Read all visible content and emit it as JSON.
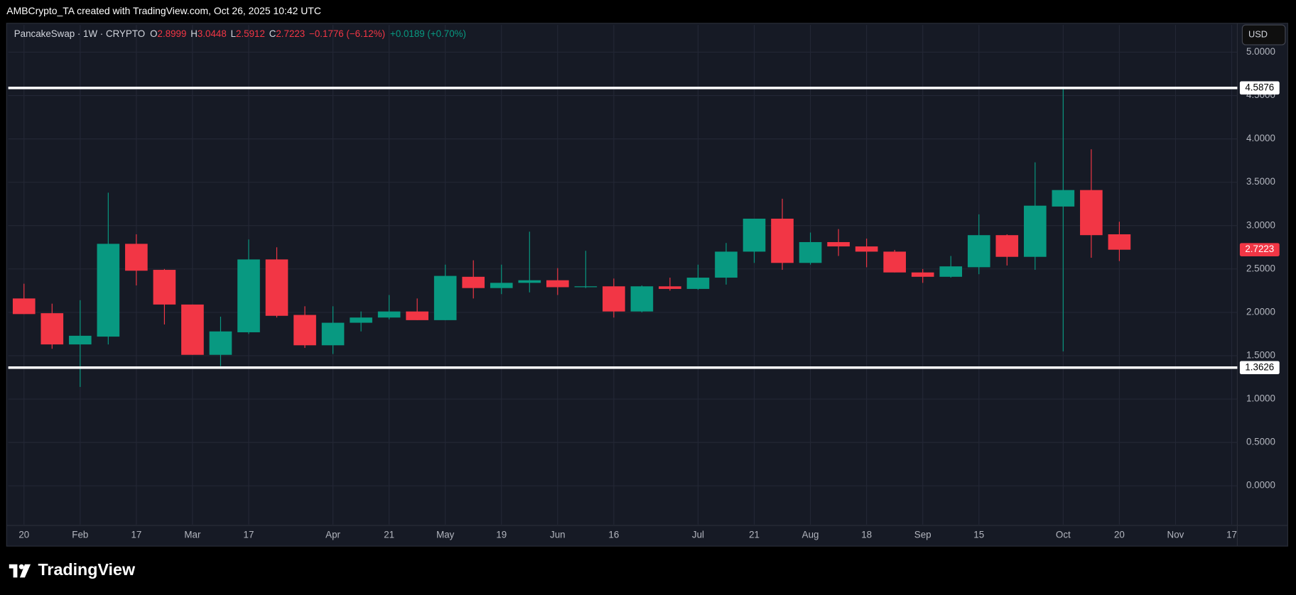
{
  "banner": "AMBCrypto_TA created with TradingView.com, Oct 26, 2025 10:42 UTC",
  "brand": "TradingView",
  "currency": "USD",
  "chart_data": {
    "type": "candlestick",
    "title": "PancakeSwap · 1W · CRYPTO",
    "ohlc_legend": [
      {
        "label": "O",
        "value": "2.8999"
      },
      {
        "label": "H",
        "value": "3.0448"
      },
      {
        "label": "L",
        "value": "2.5912"
      },
      {
        "label": "C",
        "value": "2.7223"
      }
    ],
    "change": "−0.1776 (−6.12%)",
    "extra": "+0.0189 (+0.70%)",
    "up_color": "#089981",
    "down_color": "#f23645",
    "open": [
      2.16,
      1.99,
      1.63,
      1.72,
      2.79,
      2.49,
      2.09,
      1.51,
      1.77,
      2.61,
      1.97,
      1.62,
      1.88,
      1.94,
      2.01,
      1.91,
      2.41,
      2.28,
      2.34,
      2.37,
      2.29,
      2.3,
      2.01,
      2.3,
      2.27,
      2.4,
      2.7,
      3.08,
      2.57,
      2.81,
      2.76,
      2.7,
      2.46,
      2.41,
      2.52,
      2.89,
      2.64,
      3.22,
      3.41,
      2.8999
    ],
    "high": [
      2.33,
      2.1,
      2.14,
      3.38,
      2.9,
      2.5,
      2.09,
      1.95,
      2.84,
      2.75,
      2.07,
      2.07,
      2.01,
      2.2,
      2.16,
      2.55,
      2.6,
      2.55,
      2.93,
      2.51,
      2.71,
      2.39,
      2.31,
      2.4,
      2.55,
      2.8,
      3.08,
      3.31,
      2.92,
      2.96,
      2.85,
      2.72,
      2.5,
      2.65,
      3.13,
      2.9,
      3.73,
      4.5876,
      3.88,
      3.0448
    ],
    "low": [
      1.98,
      1.58,
      1.14,
      1.63,
      2.31,
      1.86,
      1.51,
      1.38,
      1.75,
      1.94,
      1.59,
      1.52,
      1.78,
      1.92,
      1.91,
      1.91,
      2.16,
      2.21,
      2.23,
      2.2,
      2.28,
      1.94,
      2.0,
      2.25,
      2.26,
      2.32,
      2.57,
      2.49,
      2.55,
      2.65,
      2.52,
      2.46,
      2.34,
      2.4,
      2.44,
      2.54,
      2.49,
      1.55,
      2.63,
      2.5912
    ],
    "close": [
      1.98,
      1.63,
      1.73,
      2.79,
      2.48,
      2.09,
      1.51,
      1.78,
      2.61,
      1.96,
      1.62,
      1.88,
      1.94,
      2.01,
      1.91,
      2.42,
      2.28,
      2.34,
      2.37,
      2.29,
      2.3,
      2.01,
      2.3,
      2.27,
      2.4,
      2.7,
      3.08,
      2.57,
      2.81,
      2.76,
      2.7,
      2.46,
      2.41,
      2.53,
      2.89,
      2.64,
      3.23,
      3.41,
      2.89,
      2.7223
    ],
    "xlim": [
      -0.56,
      43.2
    ],
    "xticks": [
      {
        "value": 0,
        "label": "20"
      },
      {
        "value": 2,
        "label": "Feb"
      },
      {
        "value": 4,
        "label": "17"
      },
      {
        "value": 6,
        "label": "Mar"
      },
      {
        "value": 8,
        "label": "17"
      },
      {
        "value": 11,
        "label": "Apr"
      },
      {
        "value": 13,
        "label": "21"
      },
      {
        "value": 15,
        "label": "May"
      },
      {
        "value": 17,
        "label": "19"
      },
      {
        "value": 19,
        "label": "Jun"
      },
      {
        "value": 21,
        "label": "16"
      },
      {
        "value": 24,
        "label": "Jul"
      },
      {
        "value": 26,
        "label": "21"
      },
      {
        "value": 28,
        "label": "Aug"
      },
      {
        "value": 30,
        "label": "18"
      },
      {
        "value": 32,
        "label": "Sep"
      },
      {
        "value": 34,
        "label": "15"
      },
      {
        "value": 37,
        "label": "Oct"
      },
      {
        "value": 39,
        "label": "20"
      },
      {
        "value": 41,
        "label": "Nov"
      },
      {
        "value": 43,
        "label": "17"
      }
    ],
    "ylim": [
      -0.448,
      5.314
    ],
    "yticks": [
      {
        "value": 0,
        "label": "0.0000"
      },
      {
        "value": 0.5,
        "label": "0.5000"
      },
      {
        "value": 1,
        "label": "1.0000"
      },
      {
        "value": 1.5,
        "label": "1.5000"
      },
      {
        "value": 2,
        "label": "2.0000"
      },
      {
        "value": 2.5,
        "label": "2.5000"
      },
      {
        "value": 3,
        "label": "3.0000"
      },
      {
        "value": 3.5,
        "label": "3.5000"
      },
      {
        "value": 4,
        "label": "4.0000"
      },
      {
        "value": 4.5,
        "label": "4.5000"
      },
      {
        "value": 5,
        "label": "5.0000"
      }
    ],
    "grid": true,
    "hlines": [
      4.5876,
      1.3626
    ],
    "hline_color": "#ffffff"
  }
}
